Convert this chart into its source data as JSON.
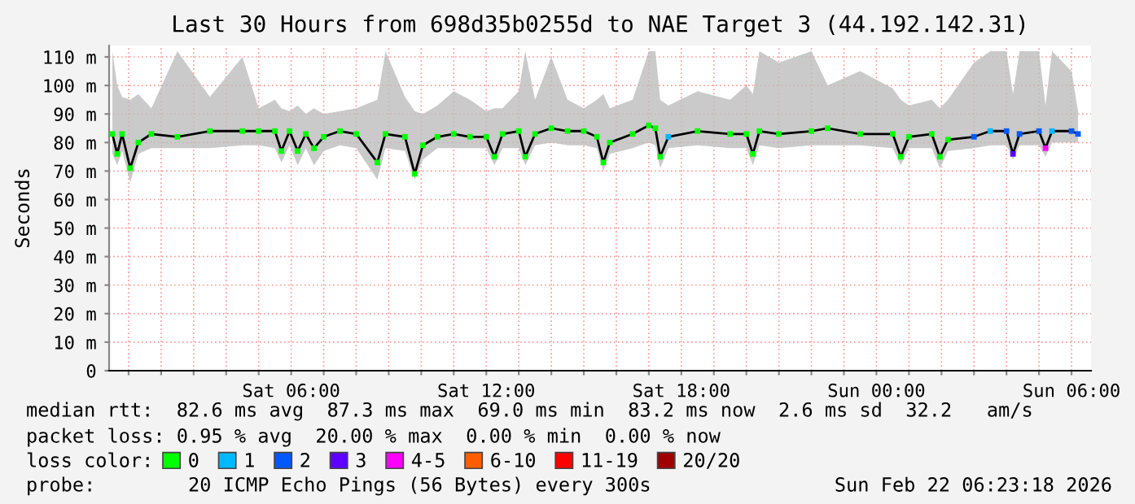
{
  "chart_data": {
    "type": "line",
    "title": "Last 30 Hours from 698d35b0255d to NAE Target 3 (44.192.142.31)",
    "ylabel": "Seconds",
    "xlim": [
      "2026-02-21T00:24",
      "2026-02-22T06:36"
    ],
    "xticks": [
      {
        "value": "2026-02-21T01:00",
        "label": null
      },
      {
        "value": "2026-02-21T02:00",
        "label": null
      },
      {
        "value": "2026-02-21T03:00",
        "label": null
      },
      {
        "value": "2026-02-21T04:00",
        "label": null
      },
      {
        "value": "2026-02-21T05:00",
        "label": null
      },
      {
        "value": "2026-02-21T06:00",
        "label": "Sat 06:00"
      },
      {
        "value": "2026-02-21T07:00",
        "label": null
      },
      {
        "value": "2026-02-21T08:00",
        "label": null
      },
      {
        "value": "2026-02-21T09:00",
        "label": null
      },
      {
        "value": "2026-02-21T10:00",
        "label": null
      },
      {
        "value": "2026-02-21T11:00",
        "label": null
      },
      {
        "value": "2026-02-21T12:00",
        "label": "Sat 12:00"
      },
      {
        "value": "2026-02-21T13:00",
        "label": null
      },
      {
        "value": "2026-02-21T14:00",
        "label": null
      },
      {
        "value": "2026-02-21T15:00",
        "label": null
      },
      {
        "value": "2026-02-21T16:00",
        "label": null
      },
      {
        "value": "2026-02-21T17:00",
        "label": null
      },
      {
        "value": "2026-02-21T18:00",
        "label": "Sat 18:00"
      },
      {
        "value": "2026-02-21T19:00",
        "label": null
      },
      {
        "value": "2026-02-21T20:00",
        "label": null
      },
      {
        "value": "2026-02-21T21:00",
        "label": null
      },
      {
        "value": "2026-02-21T22:00",
        "label": null
      },
      {
        "value": "2026-02-21T23:00",
        "label": null
      },
      {
        "value": "2026-02-22T00:00",
        "label": "Sun 00:00"
      },
      {
        "value": "2026-02-22T01:00",
        "label": null
      },
      {
        "value": "2026-02-22T02:00",
        "label": null
      },
      {
        "value": "2026-02-22T03:00",
        "label": null
      },
      {
        "value": "2026-02-22T04:00",
        "label": null
      },
      {
        "value": "2026-02-22T05:00",
        "label": null
      },
      {
        "value": "2026-02-22T06:00",
        "label": "Sun 06:00"
      }
    ],
    "ylim": [
      0,
      114
    ],
    "yticks": [
      0,
      {
        "value": 10,
        "label": "10 m"
      },
      {
        "value": 20,
        "label": "20 m"
      },
      {
        "value": 30,
        "label": "30 m"
      },
      {
        "value": 40,
        "label": "40 m"
      },
      {
        "value": 50,
        "label": "50 m"
      },
      {
        "value": 60,
        "label": "60 m"
      },
      {
        "value": 70,
        "label": "70 m"
      },
      {
        "value": 80,
        "label": "80 m"
      },
      {
        "value": 90,
        "label": "90 m"
      },
      {
        "value": 100,
        "label": "100 m"
      },
      {
        "value": 110,
        "label": "110 m"
      }
    ],
    "grid": true,
    "legend": "bottom",
    "marker": "square",
    "series": [
      {
        "color": "#000000",
        "marker": "none",
        "x": [
          "2026-02-21T00:30",
          "2026-02-21T00:39",
          "2026-02-21T00:48",
          "2026-02-21T01:03",
          "2026-02-21T01:18",
          "2026-02-21T01:42",
          "2026-02-21T02:30",
          "2026-02-21T03:30",
          "2026-02-21T04:30",
          "2026-02-21T05:00",
          "2026-02-21T05:30",
          "2026-02-21T05:42",
          "2026-02-21T05:57",
          "2026-02-21T06:12",
          "2026-02-21T06:27",
          "2026-02-21T06:42",
          "2026-02-21T07:00",
          "2026-02-21T07:30",
          "2026-02-21T08:00",
          "2026-02-21T08:39",
          "2026-02-21T08:54",
          "2026-02-21T09:30",
          "2026-02-21T09:48",
          "2026-02-21T10:03",
          "2026-02-21T10:30",
          "2026-02-21T11:00",
          "2026-02-21T11:30",
          "2026-02-21T12:00",
          "2026-02-21T12:15",
          "2026-02-21T12:30",
          "2026-02-21T13:00",
          "2026-02-21T13:12",
          "2026-02-21T13:30",
          "2026-02-21T14:00",
          "2026-02-21T14:30",
          "2026-02-21T15:00",
          "2026-02-21T15:24",
          "2026-02-21T15:36",
          "2026-02-21T15:48",
          "2026-02-21T16:30",
          "2026-02-21T17:00",
          "2026-02-21T17:12",
          "2026-02-21T17:21",
          "2026-02-21T17:36",
          "2026-02-21T18:30",
          "2026-02-21T19:30",
          "2026-02-21T20:00",
          "2026-02-21T20:12",
          "2026-02-21T20:24",
          "2026-02-21T21:00",
          "2026-02-21T22:00",
          "2026-02-21T22:30",
          "2026-02-21T23:30",
          "2026-02-22T00:30",
          "2026-02-22T00:45",
          "2026-02-22T01:00",
          "2026-02-22T01:42",
          "2026-02-22T01:57",
          "2026-02-22T02:12",
          "2026-02-22T03:00",
          "2026-02-22T03:30",
          "2026-02-22T04:00",
          "2026-02-22T04:12",
          "2026-02-22T04:24",
          "2026-02-22T05:00",
          "2026-02-22T05:12",
          "2026-02-22T05:24",
          "2026-02-22T06:00",
          "2026-02-22T06:12"
        ],
        "values": [
          83,
          76,
          83,
          71,
          80,
          83,
          82,
          84,
          84,
          84,
          84,
          77,
          84,
          77,
          83,
          78,
          82,
          84,
          83,
          73,
          83,
          82,
          69,
          79,
          82,
          83,
          82,
          82,
          75,
          83,
          84,
          75,
          83,
          85,
          84,
          84,
          82,
          73,
          80,
          83,
          86,
          85,
          75,
          82,
          84,
          83,
          83,
          76,
          84,
          83,
          84,
          85,
          83,
          83,
          75,
          82,
          83,
          75,
          81,
          82,
          84,
          84,
          76,
          83,
          84,
          78,
          84,
          84,
          83
        ],
        "lower": [
          76,
          72,
          77,
          66,
          76,
          78,
          78,
          78,
          79,
          79,
          78,
          73,
          79,
          72,
          78,
          72,
          77,
          79,
          78,
          67,
          78,
          77,
          67,
          74,
          78,
          78,
          78,
          78,
          72,
          78,
          78,
          72,
          79,
          80,
          79,
          79,
          78,
          70,
          76,
          78,
          80,
          79,
          71,
          78,
          79,
          78,
          78,
          72,
          79,
          78,
          79,
          79,
          79,
          78,
          72,
          78,
          78,
          71,
          77,
          78,
          79,
          79,
          74,
          79,
          79,
          75,
          80,
          80,
          80
        ],
        "upper": [
          112,
          100,
          96,
          95,
          97,
          92,
          112,
          96,
          110,
          92,
          95,
          92,
          91,
          93,
          90,
          92,
          90,
          91,
          92,
          95,
          112,
          96,
          91,
          90,
          93,
          98,
          95,
          91,
          92,
          92,
          98,
          112,
          95,
          110,
          95,
          92,
          95,
          97,
          92,
          95,
          112,
          112,
          95,
          93,
          98,
          95,
          100,
          97,
          112,
          108,
          112,
          100,
          105,
          99,
          95,
          93,
          95,
          92,
          95,
          108,
          112,
          112,
          97,
          112,
          112,
          93,
          112,
          105,
          91
        ]
      },
      {
        "type": "scatter",
        "name": "0",
        "color": "#00ff00",
        "x": [
          "2026-02-21T00:30",
          "2026-02-21T00:39",
          "2026-02-21T00:48",
          "2026-02-21T01:03",
          "2026-02-21T01:18",
          "2026-02-21T01:42",
          "2026-02-21T02:30",
          "2026-02-21T03:30",
          "2026-02-21T04:30",
          "2026-02-21T05:00",
          "2026-02-21T05:30",
          "2026-02-21T05:42",
          "2026-02-21T05:57",
          "2026-02-21T06:12",
          "2026-02-21T06:27",
          "2026-02-21T06:42",
          "2026-02-21T07:00",
          "2026-02-21T07:30",
          "2026-02-21T08:00",
          "2026-02-21T08:39",
          "2026-02-21T08:54",
          "2026-02-21T09:30",
          "2026-02-21T09:48",
          "2026-02-21T10:03",
          "2026-02-21T10:30",
          "2026-02-21T11:00",
          "2026-02-21T11:30",
          "2026-02-21T12:00",
          "2026-02-21T12:15",
          "2026-02-21T12:30",
          "2026-02-21T13:00",
          "2026-02-21T13:12",
          "2026-02-21T13:30",
          "2026-02-21T14:00",
          "2026-02-21T14:30",
          "2026-02-21T15:00",
          "2026-02-21T15:24",
          "2026-02-21T15:36",
          "2026-02-21T15:48",
          "2026-02-21T16:30",
          "2026-02-21T17:00",
          "2026-02-21T17:12",
          "2026-02-21T17:21",
          "2026-02-21T18:30",
          "2026-02-21T19:30",
          "2026-02-21T20:00",
          "2026-02-21T20:12",
          "2026-02-21T20:24",
          "2026-02-21T21:00",
          "2026-02-21T22:00",
          "2026-02-21T22:30",
          "2026-02-21T23:30",
          "2026-02-22T00:30",
          "2026-02-22T00:45",
          "2026-02-22T01:00",
          "2026-02-22T01:42",
          "2026-02-22T01:57",
          "2026-02-22T02:12"
        ],
        "values": [
          83,
          76,
          83,
          71,
          80,
          83,
          82,
          84,
          84,
          84,
          84,
          77,
          84,
          77,
          83,
          78,
          82,
          84,
          83,
          73,
          83,
          82,
          69,
          79,
          82,
          83,
          82,
          82,
          75,
          83,
          84,
          75,
          83,
          85,
          84,
          84,
          82,
          73,
          80,
          83,
          86,
          85,
          75,
          84,
          83,
          83,
          76,
          84,
          83,
          84,
          85,
          83,
          83,
          75,
          82,
          83,
          75,
          81
        ]
      },
      {
        "type": "scatter",
        "name": "1",
        "color": "#00b8ff",
        "x": [
          "2026-02-21T17:36",
          "2026-02-22T03:30",
          "2026-02-22T05:24"
        ],
        "values": [
          82,
          84,
          84
        ]
      },
      {
        "type": "scatter",
        "name": "2",
        "color": "#0059ff",
        "x": [
          "2026-02-22T03:00",
          "2026-02-22T04:00",
          "2026-02-22T04:24",
          "2026-02-22T05:00",
          "2026-02-22T06:00",
          "2026-02-22T06:12"
        ],
        "values": [
          82,
          84,
          83,
          84,
          84,
          83
        ]
      },
      {
        "type": "scatter",
        "name": "3",
        "color": "#5e00ff",
        "x": [
          "2026-02-22T04:12"
        ],
        "values": [
          76
        ]
      },
      {
        "type": "scatter",
        "name": "4-5",
        "color": "#ff00ff",
        "x": [
          "2026-02-22T05:12"
        ],
        "values": [
          78
        ]
      },
      {
        "type": "scatter",
        "name": "6-10",
        "color": "#ff5e00"
      },
      {
        "type": "scatter",
        "name": "11-19",
        "color": "#ff0000"
      },
      {
        "type": "scatter",
        "name": "20/20",
        "color": "#a10000"
      }
    ],
    "annotations": [
      "median rtt:  82.6 ms avg  87.3 ms max  69.0 ms min  83.2 ms now  2.6 ms sd  32.2   am/s",
      "packet loss: 0.95 % avg  20.00 % max  0.00 % min  0.00 % now",
      "loss color:",
      "probe:        20 ICMP Echo Pings (56 Bytes) every 300s",
      "Sun Feb 22 06:23:18 2026"
    ]
  }
}
